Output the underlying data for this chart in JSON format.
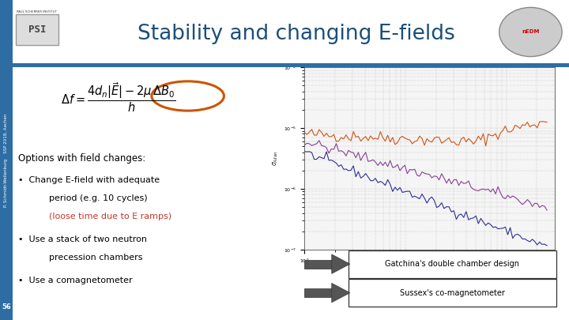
{
  "title": "Stability and changing E-fields",
  "title_color": "#1B4F79",
  "title_fontsize": 19,
  "slide_bg": "#FFFFFF",
  "header_bar_color": "#2E6DA4",
  "sidebar_color": "#2E6DA4",
  "options_title": "Options with field changes:",
  "bullet1_color": "#C0392B",
  "box1_text": "Gatchina's double chamber design",
  "box2_text": "Sussex's co-magnetometer",
  "box_border_color": "#333333",
  "box_fill_color": "#FFFFFF",
  "box_text_color": "#000000",
  "arrow_fill": "#555555",
  "arrow_edge": "#333333",
  "slide_number": "56",
  "text_color": "#000000",
  "plot_line1_color": "#CC4400",
  "plot_line2_color": "#7B2D8B",
  "plot_line3_color": "#1A1A8C",
  "circle_color": "#CC5500",
  "sidebar_text": "P. Schmidt-Wellenburg    SSP 2018, Aachen"
}
